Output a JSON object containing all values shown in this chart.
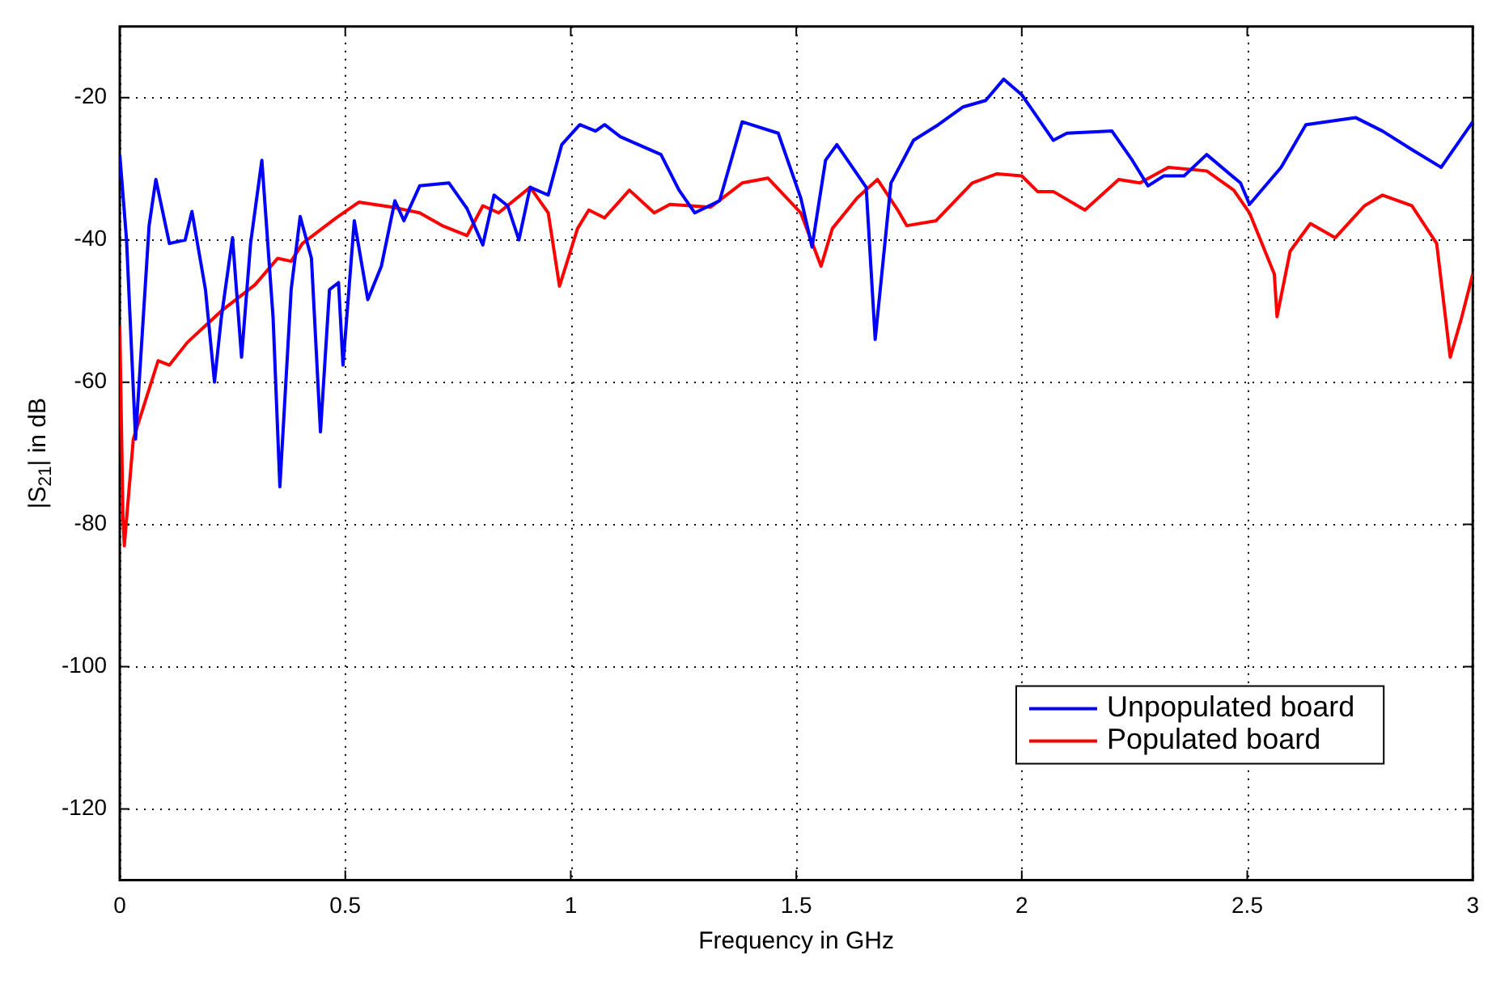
{
  "chart_data": {
    "type": "line",
    "xlabel": "Frequency in GHz",
    "ylabel": "|S$_{21}$| in dB",
    "xlim": [
      0,
      3
    ],
    "ylim": [
      -130,
      -10
    ],
    "xticks": [
      0,
      0.5,
      1,
      1.5,
      2,
      2.5,
      3
    ],
    "yticks": [
      -120,
      -100,
      -80,
      -60,
      -40,
      -20
    ],
    "grid": true,
    "legend": "bottom right",
    "marker": "none",
    "line_style": "solid",
    "series": [
      {
        "name": "Unpopulated board",
        "color": "#0000ff",
        "x": [
          0,
          0.015,
          0.035,
          0.065,
          0.08,
          0.11,
          0.145,
          0.16,
          0.19,
          0.21,
          0.225,
          0.25,
          0.27,
          0.29,
          0.315,
          0.34,
          0.355,
          0.38,
          0.4,
          0.425,
          0.445,
          0.465,
          0.485,
          0.495,
          0.52,
          0.55,
          0.58,
          0.61,
          0.63,
          0.665,
          0.73,
          0.77,
          0.805,
          0.83,
          0.86,
          0.885,
          0.91,
          0.95,
          0.98,
          1.02,
          1.055,
          1.075,
          1.11,
          1.2,
          1.24,
          1.275,
          1.33,
          1.38,
          1.46,
          1.51,
          1.535,
          1.565,
          1.59,
          1.655,
          1.675,
          1.71,
          1.76,
          1.815,
          1.87,
          1.92,
          1.96,
          2,
          2.07,
          2.1,
          2.2,
          2.245,
          2.28,
          2.315,
          2.36,
          2.41,
          2.485,
          2.505,
          2.575,
          2.63,
          2.74,
          2.8,
          2.865,
          2.93,
          3
        ],
        "values": [
          -28,
          -40,
          -68,
          -38,
          -31.5,
          -40.5,
          -40,
          -36,
          -47,
          -60,
          -51,
          -39.7,
          -56.5,
          -40.5,
          -28.8,
          -51,
          -74.7,
          -47,
          -36.7,
          -42.6,
          -67,
          -47,
          -46,
          -57.6,
          -37.3,
          -48.4,
          -43.7,
          -34.5,
          -37.3,
          -32.4,
          -32,
          -35.6,
          -40.7,
          -33.7,
          -35.2,
          -40,
          -32.6,
          -33.7,
          -26.6,
          -23.8,
          -24.7,
          -23.8,
          -25.5,
          -28,
          -33,
          -36.2,
          -34.5,
          -23.4,
          -25,
          -34.1,
          -41,
          -28.8,
          -26.6,
          -32.6,
          -54,
          -32,
          -26,
          -23.8,
          -21.3,
          -20.4,
          -17.4,
          -19.6,
          -26,
          -25,
          -24.7,
          -28.8,
          -32.4,
          -31,
          -31,
          -28,
          -32,
          -35,
          -29.8,
          -23.8,
          -22.8,
          -24.7,
          -27.3,
          -29.8,
          -23.4
        ]
      },
      {
        "name": "Populated board",
        "color": "#ff0000",
        "x": [
          0,
          0.007,
          0.01,
          0.03,
          0.06,
          0.085,
          0.11,
          0.15,
          0.225,
          0.3,
          0.35,
          0.38,
          0.405,
          0.48,
          0.53,
          0.605,
          0.665,
          0.715,
          0.77,
          0.805,
          0.84,
          0.91,
          0.95,
          0.975,
          1.015,
          1.04,
          1.075,
          1.13,
          1.185,
          1.22,
          1.31,
          1.38,
          1.437,
          1.51,
          1.555,
          1.58,
          1.635,
          1.68,
          1.725,
          1.745,
          1.81,
          1.89,
          1.945,
          2,
          2.035,
          2.07,
          2.14,
          2.215,
          2.262,
          2.325,
          2.41,
          2.47,
          2.505,
          2.56,
          2.566,
          2.595,
          2.64,
          2.695,
          2.76,
          2.8,
          2.865,
          2.92,
          2.95,
          2.975,
          3
        ],
        "values": [
          -52,
          -79,
          -83,
          -68,
          -62,
          -57,
          -57.6,
          -54.4,
          -50,
          -46.3,
          -42.6,
          -43,
          -40.5,
          -36.9,
          -34.7,
          -35.4,
          -36.2,
          -38,
          -39.4,
          -35.2,
          -36.2,
          -32.6,
          -36.2,
          -46.5,
          -38.4,
          -35.8,
          -36.9,
          -33,
          -36.2,
          -35,
          -35.4,
          -32,
          -31.3,
          -36.2,
          -43.7,
          -38.4,
          -34.1,
          -31.5,
          -35.8,
          -38,
          -37.3,
          -32,
          -30.7,
          -31,
          -33.2,
          -33.2,
          -35.8,
          -31.5,
          -32,
          -29.8,
          -30.3,
          -33,
          -36.2,
          -44.8,
          -50.8,
          -41.6,
          -37.7,
          -39.7,
          -35.2,
          -33.7,
          -35.2,
          -40.5,
          -56.5,
          -51,
          -44.8
        ]
      }
    ]
  }
}
